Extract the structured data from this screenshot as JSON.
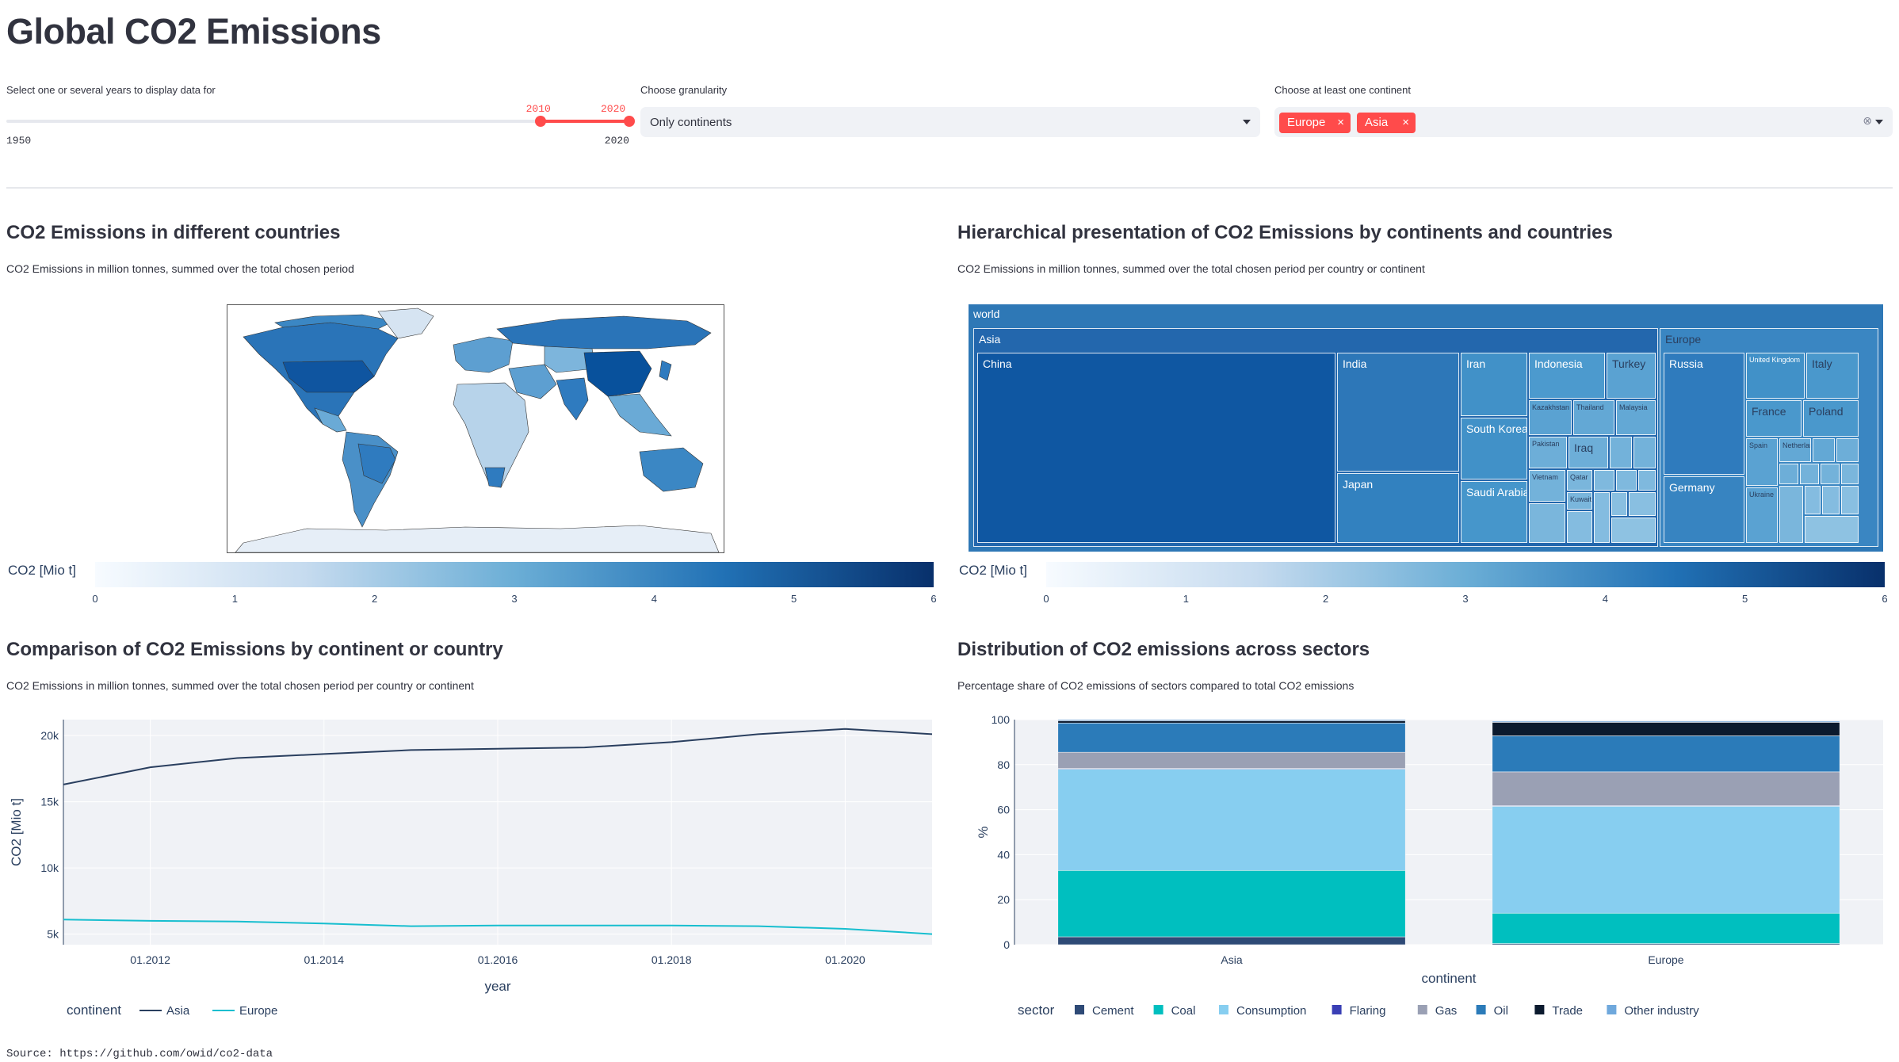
{
  "header": {
    "title": "Global CO2 Emissions"
  },
  "controls": {
    "years": {
      "label": "Select one or several years to display data for",
      "min": "1950",
      "max": "2020",
      "from": "2010",
      "to": "2020",
      "from_frac": 0.857,
      "to_frac": 1.0,
      "accent": "#ff4b4b"
    },
    "granularity": {
      "label": "Choose granularity",
      "value": "Only continents"
    },
    "continents": {
      "label": "Choose at least one continent",
      "tags": [
        "Europe",
        "Asia"
      ],
      "tag_x": "×",
      "clear": "⊗"
    }
  },
  "map_section": {
    "title": "CO2 Emissions in different countries",
    "subtitle": "CO2 Emissions in million tonnes, summed over the total chosen period",
    "colorbar": {
      "title": "CO2 [Mio t]",
      "ticks": [
        "0",
        "1",
        "2",
        "3",
        "4",
        "5",
        "6"
      ]
    }
  },
  "treemap_section": {
    "title": "Hierarchical presentation of CO2 Emissions by continents and countries",
    "subtitle": "CO2 Emissions in million tonnes, summed over the total chosen period per country or continent",
    "colorbar": {
      "title": "CO2 [Mio t]",
      "ticks": [
        "0",
        "1",
        "2",
        "3",
        "4",
        "5",
        "6"
      ]
    },
    "root": "world",
    "asia": "Asia",
    "europe": "Europe",
    "asia_countries": [
      "China",
      "India",
      "Japan",
      "Iran",
      "South Korea",
      "Saudi Arabia",
      "Indonesia",
      "Turkey",
      "Kazakhstan",
      "Thailand",
      "Malaysia",
      "Pakistan",
      "Iraq",
      "Vietnam",
      "Qatar",
      "Kuwait"
    ],
    "europe_countries": [
      "Russia",
      "Germany",
      "United Kingdom",
      "Italy",
      "France",
      "Poland",
      "Spain",
      "Ukraine",
      "Netherlands"
    ]
  },
  "line_section": {
    "title": "Comparison of CO2 Emissions by continent or country",
    "subtitle": "CO2 Emissions in million tonnes, summed over the total chosen period per country or continent"
  },
  "bar_section": {
    "title": "Distribution of CO2 emissions across sectors",
    "subtitle": "Percentage share of CO2 emissions of sectors compared to total CO2 emissions"
  },
  "footer": {
    "source": "Source: https://github.com/owid/co2-data"
  },
  "chart_data": [
    {
      "type": "line",
      "xlabel": "year",
      "ylabel": "CO2 [Mio t]",
      "x": [
        "2011-01",
        "2012-01",
        "2013-01",
        "2014-01",
        "2015-01",
        "2016-01",
        "2017-01",
        "2018-01",
        "2019-01",
        "2020-01",
        "2021-01"
      ],
      "xticks": [
        "01.2012",
        "01.2014",
        "01.2016",
        "01.2018",
        "01.2020"
      ],
      "yticks": [
        "5k",
        "10k",
        "15k",
        "20k"
      ],
      "ylim": [
        4200,
        21200
      ],
      "legend_title": "continent",
      "series": [
        {
          "name": "Asia",
          "color": "#2a3f5f",
          "values": [
            16300,
            17600,
            18300,
            18600,
            18900,
            19000,
            19100,
            19500,
            20100,
            20500,
            20100
          ]
        },
        {
          "name": "Europe",
          "color": "#17becf",
          "values": [
            6100,
            6000,
            5950,
            5800,
            5600,
            5650,
            5650,
            5650,
            5600,
            5400,
            5000
          ]
        }
      ]
    },
    {
      "type": "bar",
      "stacked": true,
      "xlabel": "continent",
      "ylabel": "%",
      "categories": [
        "Asia",
        "Europe"
      ],
      "yticks": [
        "0",
        "20",
        "40",
        "60",
        "80",
        "100"
      ],
      "ylim": [
        0,
        100
      ],
      "legend_title": "sector",
      "series": [
        {
          "name": "Cement",
          "color": "#2e4a76",
          "values": [
            3.5,
            0.5
          ]
        },
        {
          "name": "Coal",
          "color": "#00bfbf",
          "values": [
            29.5,
            13.5
          ]
        },
        {
          "name": "Consumption",
          "color": "#87cef0",
          "values": [
            45,
            47.5
          ]
        },
        {
          "name": "Flaring",
          "color": "#3a3fb5",
          "values": [
            0.3,
            0.3
          ]
        },
        {
          "name": "Gas",
          "color": "#9aa0b4",
          "values": [
            7.2,
            15
          ]
        },
        {
          "name": "Oil",
          "color": "#2b7bb9",
          "values": [
            13,
            16
          ]
        },
        {
          "name": "Trade",
          "color": "#0b1a2e",
          "values": [
            1,
            6
          ]
        },
        {
          "name": "Other industry",
          "color": "#6fa8dc",
          "values": [
            0.5,
            0.5
          ]
        }
      ]
    }
  ]
}
